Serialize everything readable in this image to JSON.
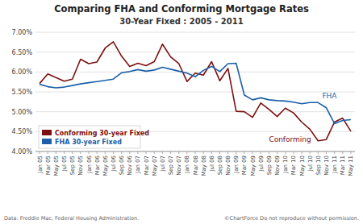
{
  "chart_data": {
    "type": "line",
    "title": "Comparing FHA and Conforming Mortgage Rates",
    "subtitle": "30-Year Fixed : 2005 - 2011",
    "categories": [
      "Jan 05",
      "Mar 05",
      "May 05",
      "Jul 05",
      "Sep 05",
      "Nov 05",
      "Jan 06",
      "Mar 06",
      "May 06",
      "Jul 06",
      "Sep 06",
      "Nov 06",
      "Jan 07",
      "Mar 07",
      "May 07",
      "Jul 07",
      "Sep 07",
      "Nov 07",
      "Jan 08",
      "Mar 08",
      "May 08",
      "Jul 08",
      "Sep 08",
      "Nov 08",
      "Jan 09",
      "Mar 09",
      "May 09",
      "Jul 09",
      "Sep 09",
      "Nov 09",
      "Jan 10",
      "Mar 10",
      "May 10",
      "Jul 10",
      "Sep 10",
      "Nov 10",
      "Jan 11",
      "Mar 11",
      "May 11"
    ],
    "series": [
      {
        "name": "Conforming 30-year Fixed",
        "color": "#7B1010",
        "values": [
          5.71,
          5.95,
          5.86,
          5.77,
          5.82,
          6.32,
          6.21,
          6.25,
          6.6,
          6.76,
          6.4,
          6.14,
          6.22,
          6.16,
          6.26,
          6.7,
          6.38,
          6.21,
          5.76,
          5.97,
          5.92,
          6.26,
          5.78,
          6.09,
          5.01,
          5.0,
          4.86,
          5.22,
          5.06,
          4.88,
          5.09,
          4.97,
          4.74,
          4.56,
          4.27,
          4.3,
          4.74,
          4.84,
          4.51
        ]
      },
      {
        "name": "FHA 30-year Fixed",
        "color": "#1B5FA8",
        "values": [
          5.69,
          5.63,
          5.6,
          5.62,
          5.66,
          5.7,
          5.73,
          5.76,
          5.79,
          5.82,
          5.98,
          6.01,
          6.06,
          6.02,
          6.05,
          6.12,
          6.07,
          6.02,
          5.97,
          5.88,
          6.04,
          6.14,
          6.01,
          6.21,
          6.22,
          5.42,
          5.3,
          5.35,
          5.3,
          5.28,
          5.27,
          5.24,
          5.2,
          5.23,
          5.23,
          5.1,
          4.7,
          4.78,
          4.8
        ]
      }
    ],
    "annotations": [
      {
        "text": "FHA",
        "color": "#1B5FA8"
      },
      {
        "text": "Conforming",
        "color": "#7B1010"
      }
    ],
    "footnotes": [
      "Data: Freddie Mac, Federal Housing Administration.",
      "©ChartForce  Do not reproduce without permission."
    ],
    "ylim": [
      4.0,
      7.0
    ],
    "yticks": [
      {
        "value": 4.0,
        "label": "4.00%"
      },
      {
        "value": 4.5,
        "label": "4.50%"
      },
      {
        "value": 5.0,
        "label": "5.00%"
      },
      {
        "value": 5.5,
        "label": "5.50%"
      },
      {
        "value": 6.0,
        "label": "6.00%"
      },
      {
        "value": 6.5,
        "label": "6.50%"
      },
      {
        "value": 7.0,
        "label": "7.00%"
      }
    ],
    "grid": true,
    "legend": "lower left"
  }
}
